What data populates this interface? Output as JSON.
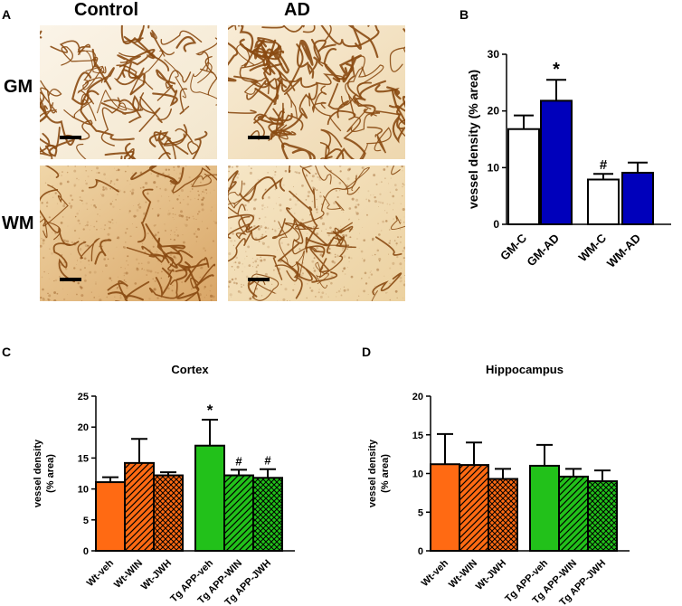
{
  "panels": {
    "A": {
      "letter": "A",
      "columns": [
        "Control",
        "AD"
      ],
      "rows": [
        "GM",
        "WM"
      ]
    },
    "B": {
      "letter": "B"
    },
    "C": {
      "letter": "C"
    },
    "D": {
      "letter": "D"
    }
  },
  "colors": {
    "white": "#ffffff",
    "blue": "#0000bb",
    "orange": "#ff6a13",
    "green": "#22c11a",
    "vessel": "#8a4a12",
    "tissue_light": "#f7ecd6",
    "tissue_dark": "#e8c48c"
  },
  "chart_data": [
    {
      "id": "B",
      "type": "bar",
      "title": "",
      "ylabel": "vessel density (% area)",
      "ylim": [
        0,
        30
      ],
      "yticks": [
        0,
        10,
        20,
        30
      ],
      "categories": [
        "GM-C",
        "GM-AD",
        "WM-C",
        "WM-AD"
      ],
      "values": [
        16.8,
        21.8,
        7.9,
        9.1
      ],
      "errors": [
        2.4,
        3.7,
        1.0,
        1.8
      ],
      "fills": [
        "white",
        "blue",
        "white",
        "blue"
      ],
      "annotations": [
        "",
        "*",
        "#",
        ""
      ]
    },
    {
      "id": "C",
      "type": "bar",
      "title": "Cortex",
      "ylabel": "vessel density\n(% area)",
      "ylim": [
        0,
        25
      ],
      "yticks": [
        0,
        5,
        10,
        15,
        20,
        25
      ],
      "categories": [
        "Wt-veh",
        "Wt-WIN",
        "Wt-JWH",
        "Tg APP-veh",
        "Tg APP-WIN",
        "Tg APP-JWH"
      ],
      "values": [
        11.1,
        14.2,
        12.2,
        17.0,
        12.2,
        11.8
      ],
      "errors": [
        0.8,
        3.9,
        0.5,
        4.2,
        0.9,
        1.4
      ],
      "fills": [
        "orange",
        "orange",
        "orange",
        "green",
        "green",
        "green"
      ],
      "patterns": [
        "solid",
        "diag",
        "cross",
        "solid",
        "diag",
        "cross"
      ],
      "annotations": [
        "",
        "",
        "",
        "*",
        "#",
        "#"
      ]
    },
    {
      "id": "D",
      "type": "bar",
      "title": "Hippocampus",
      "ylabel": "vessel density\n(% area)",
      "ylim": [
        0,
        20
      ],
      "yticks": [
        0,
        5,
        10,
        15,
        20
      ],
      "categories": [
        "Wt-veh",
        "Wt-WIN",
        "Wt-JWH",
        "Tg APP-veh",
        "Tg APP-WIN",
        "Tg APP-JWH"
      ],
      "values": [
        11.2,
        11.1,
        9.3,
        11.0,
        9.6,
        9.0
      ],
      "errors": [
        3.9,
        2.9,
        1.3,
        2.7,
        1.0,
        1.4
      ],
      "fills": [
        "orange",
        "orange",
        "orange",
        "green",
        "green",
        "green"
      ],
      "patterns": [
        "solid",
        "diag",
        "cross",
        "solid",
        "diag",
        "cross"
      ],
      "annotations": [
        "",
        "",
        "",
        "",
        "",
        ""
      ]
    }
  ]
}
